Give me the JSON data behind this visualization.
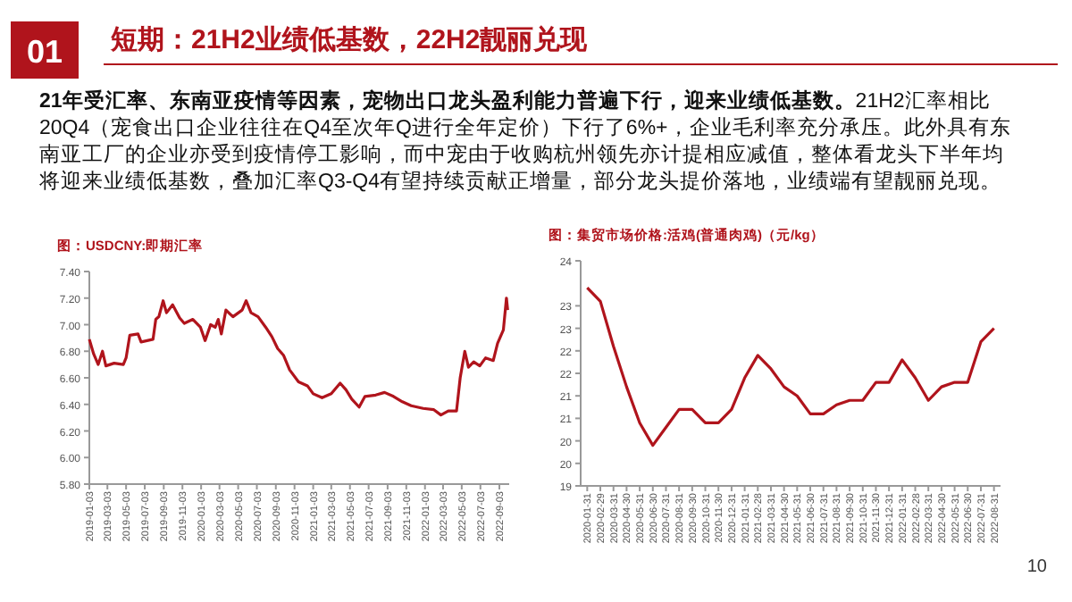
{
  "chart_data": [
    {
      "type": "other",
      "annotations": [
        "01",
        "短期：21H2业绩低基数，22H2靓丽兑现",
        "21年受汇率、东南亚疫情等因素，宠物出口龙头盈利能力普遍下行，迎来业绩低基数。",
        "21H2汇率相比20Q4（宠食出口企业往往在Q4至次年Q进行全年定价）下行了6%+，企业毛利率充分承压。此外具有东南亚工厂的企业亦受到疫情停工影响，而中宠由于收购杭州领先亦计提相应减值，整体看龙头下半年均将迎来业绩低基数，叠加汇率Q3-Q4有望持续贡献正增量，部分龙头提价落地，业绩端有望靓丽兑现。",
        "10"
      ]
    },
    {
      "type": "line",
      "title": "图：USDCNY:即期汇率",
      "x": [
        "2019-01-03",
        "2019-01-17",
        "2019-02-01",
        "2019-02-15",
        "2019-02-26",
        "2019-03-25",
        "2019-04-24",
        "2019-05-03",
        "2019-05-15",
        "2019-06-11",
        "2019-06-21",
        "2019-07-30",
        "2019-08-08",
        "2019-08-18",
        "2019-09-01",
        "2019-09-12",
        "2019-10-02",
        "2019-10-25",
        "2019-11-09",
        "2019-12-07",
        "2020-01-01",
        "2020-01-16",
        "2020-02-03",
        "2020-02-18",
        "2020-02-28",
        "2020-03-09",
        "2020-03-24",
        "2020-04-16",
        "2020-05-16",
        "2020-05-29",
        "2020-06-14",
        "2020-07-07",
        "2020-08-01",
        "2020-08-21",
        "2020-09-09",
        "2020-09-28",
        "2020-10-18",
        "2020-11-16",
        "2020-12-15",
        "2021-01-03",
        "2021-02-01",
        "2021-03-03",
        "2021-04-01",
        "2021-04-20",
        "2021-05-09",
        "2021-06-02",
        "2021-06-21",
        "2021-07-26",
        "2021-08-24",
        "2021-09-22",
        "2021-10-21",
        "2021-11-19",
        "2021-12-28",
        "2022-02-01",
        "2022-02-24",
        "2022-03-20",
        "2022-04-16",
        "2022-04-28",
        "2022-05-13",
        "2022-05-25",
        "2022-06-11",
        "2022-07-01",
        "2022-07-20",
        "2022-08-14",
        "2022-08-28",
        "2022-09-16",
        "2022-09-26",
        "2022-09-30"
      ],
      "series": [
        {
          "color": "#b0141c",
          "values": [
            6.89,
            6.78,
            6.7,
            6.8,
            6.69,
            6.71,
            6.7,
            6.75,
            6.92,
            6.93,
            6.87,
            6.89,
            7.04,
            7.06,
            7.18,
            7.09,
            7.15,
            7.05,
            7.01,
            7.04,
            6.98,
            6.88,
            7.0,
            6.98,
            7.04,
            6.93,
            7.11,
            7.06,
            7.11,
            7.18,
            7.09,
            7.06,
            6.98,
            6.91,
            6.82,
            6.77,
            6.66,
            6.57,
            6.54,
            6.48,
            6.45,
            6.48,
            6.56,
            6.51,
            6.44,
            6.38,
            6.46,
            6.47,
            6.49,
            6.46,
            6.42,
            6.39,
            6.37,
            6.36,
            6.32,
            6.35,
            6.35,
            6.6,
            6.8,
            6.68,
            6.72,
            6.69,
            6.75,
            6.73,
            6.86,
            6.96,
            7.2,
            7.11
          ]
        }
      ],
      "xlim": [
        "2019-01-03",
        "2022-10-05"
      ],
      "xticks": [
        "2019-01-03",
        "2019-03-03",
        "2019-05-03",
        "2019-07-03",
        "2019-09-03",
        "2019-11-03",
        "2020-01-03",
        "2020-03-03",
        "2020-05-03",
        "2020-07-03",
        "2020-09-03",
        "2020-11-03",
        "2021-01-03",
        "2021-03-03",
        "2021-05-03",
        "2021-07-03",
        "2021-09-03",
        "2021-11-03",
        "2022-01-03",
        "2022-03-03",
        "2022-05-03",
        "2022-07-03",
        "2022-09-03"
      ],
      "ylim": [
        5.8,
        7.4
      ],
      "yticks": [
        {
          "value": 5.8,
          "label": "5.80"
        },
        {
          "value": 6.0,
          "label": "6.00"
        },
        {
          "value": 6.2,
          "label": "6.20"
        },
        {
          "value": 6.4,
          "label": "6.40"
        },
        {
          "value": 6.6,
          "label": "6.60"
        },
        {
          "value": 6.8,
          "label": "6.80"
        },
        {
          "value": 7.0,
          "label": "7.00"
        },
        {
          "value": 7.2,
          "label": "7.20"
        },
        {
          "value": 7.4,
          "label": "7.40"
        }
      ]
    },
    {
      "type": "line",
      "title": "图：集贸市场价格:活鸡(普通肉鸡)（元/kg）",
      "categories": [
        "2020-01-31",
        "2020-02-29",
        "2020-03-31",
        "2020-04-30",
        "2020-05-31",
        "2020-06-30",
        "2020-07-31",
        "2020-08-31",
        "2020-09-30",
        "2020-10-31",
        "2020-11-30",
        "2020-12-31",
        "2021-01-31",
        "2021-02-28",
        "2021-03-31",
        "2021-04-30",
        "2021-05-31",
        "2021-06-30",
        "2021-07-31",
        "2021-08-31",
        "2021-09-30",
        "2021-10-31",
        "2021-11-30",
        "2021-12-31",
        "2022-01-31",
        "2022-02-28",
        "2022-03-31",
        "2022-04-30",
        "2022-05-31",
        "2022-06-30",
        "2022-07-31",
        "2022-08-31"
      ],
      "series": [
        {
          "color": "#b0141c",
          "values": [
            23.4,
            23.1,
            22.1,
            21.2,
            20.4,
            19.9,
            20.3,
            20.7,
            20.7,
            20.4,
            20.4,
            20.7,
            21.4,
            21.9,
            21.6,
            21.2,
            21.0,
            20.6,
            20.6,
            20.8,
            20.9,
            20.9,
            21.3,
            21.3,
            21.8,
            21.4,
            20.9,
            21.2,
            21.3,
            21.3,
            22.2,
            22.5
          ]
        }
      ],
      "ylim": [
        19,
        24
      ],
      "yticks": [
        19,
        {
          "value": 19.5,
          "label": "20"
        },
        20,
        {
          "value": 20.5,
          "label": "21"
        },
        21,
        {
          "value": 21.5,
          "label": "22"
        },
        22,
        {
          "value": 22.5,
          "label": "23"
        },
        23,
        24
      ]
    }
  ]
}
